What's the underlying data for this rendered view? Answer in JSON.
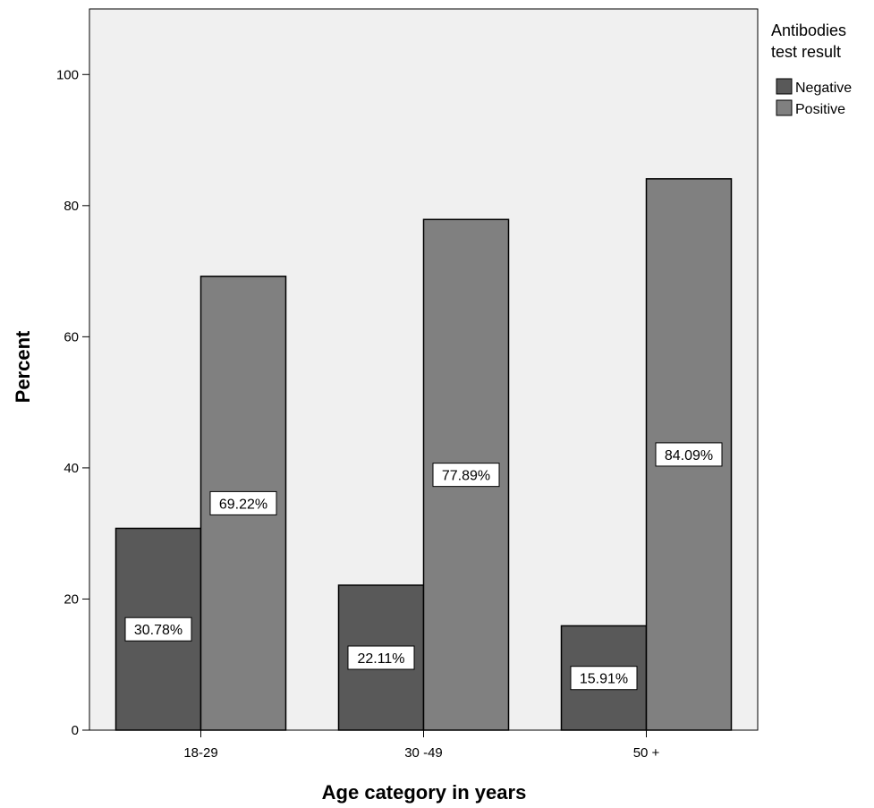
{
  "chart_data": {
    "type": "bar",
    "title": "",
    "xlabel": "Age category in years",
    "ylabel": "Percent",
    "categories": [
      "18-29",
      "30 -49",
      "50 +"
    ],
    "series": [
      {
        "name": "Negative",
        "values": [
          30.78,
          22.11,
          15.91
        ],
        "labels": [
          "30.78%",
          "22.11%",
          "15.91%"
        ],
        "color": "#595959"
      },
      {
        "name": "Positive",
        "values": [
          69.22,
          77.89,
          84.09
        ],
        "labels": [
          "69.22%",
          "77.89%",
          "84.09%"
        ],
        "color": "#808080"
      }
    ],
    "ylim": [
      0,
      110
    ],
    "yticks": [
      "0",
      "20",
      "40",
      "60",
      "80",
      "100"
    ],
    "legend": {
      "title_line1": "Antibodies",
      "title_line2": "test result",
      "position": "top-right, outside plot"
    },
    "plot_background": "#f0f0f0",
    "grid": false
  }
}
